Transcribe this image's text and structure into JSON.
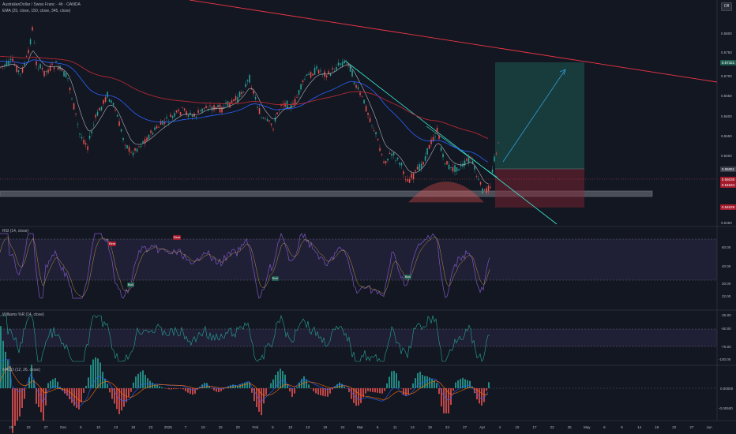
{
  "header": {
    "symbol_line": "AustralianDollar / Swiss Franc · 4h · OANDA",
    "indicator_line": "EMA (25, close, 150, close, 345, close)"
  },
  "panes": {
    "rsi_legend": "RSI (14, close)",
    "wr_legend": "Williams %R (14, close)",
    "macd_legend": "MACD (12, 26, close)"
  },
  "badge_label": "Off",
  "price_axis": {
    "ticks": [
      "0.5800",
      "0.5750",
      "0.5700",
      "0.5650",
      "0.5600",
      "0.5550",
      "0.5500",
      "0.5450"
    ],
    "labels": [
      {
        "text": "0.57421",
        "bg": "#1f5c4f"
      },
      {
        "text": "0.55061",
        "bg": "#3a3e4a"
      },
      {
        "text": "0.55035",
        "bg": "#a41b2c"
      },
      {
        "text": "0.54634",
        "bg": "#a41b2c"
      },
      {
        "text": "0.54029",
        "bg": "#a41b2c"
      }
    ]
  },
  "rsi_axis": [
    "60.00",
    "40.00",
    "30.00",
    "22.00"
  ],
  "wr_axis": [
    "-25.00",
    "-50.00",
    "-75.00",
    "-100.00"
  ],
  "macd_axis": [
    "0.00000",
    "-0.00500"
  ],
  "signals": [
    "Bear",
    "Bull",
    "Bear",
    "Bull",
    "Bull"
  ],
  "time_axis": [
    "19",
    "22",
    "27",
    "Dec",
    "5",
    "10",
    "13",
    "18",
    "23",
    "2025",
    "7",
    "10",
    "15",
    "20",
    "Feb",
    "5",
    "10",
    "13",
    "19",
    "24",
    "Mar",
    "6",
    "11",
    "14",
    "19",
    "24",
    "27",
    "Apr",
    "4",
    "10",
    "17",
    "22",
    "25",
    "May",
    "6",
    "9",
    "14",
    "19",
    "22",
    "27",
    "Jun"
  ],
  "colors": {
    "up": "#26a69a",
    "down": "#ef5350",
    "ema_fast": "#b2b5be",
    "ema_mid": "#2962ff",
    "ema_slow": "#b22833",
    "trend_red": "#f23645",
    "trend_cyan": "#3ae6ce",
    "rsi": "#7e57c2"
  },
  "chart_data": [
    {
      "type": "candlestick",
      "name": "AUDCHF 4h",
      "x_range": [
        "2024-11-19",
        "2025-06-01"
      ],
      "y_range": [
        0.545,
        0.582
      ],
      "key_levels": {
        "support_zone": [
          0.5465,
          0.5475
        ],
        "target": 0.5742,
        "entry": 0.5506,
        "stop": 0.5463
      },
      "emas": [
        25,
        150,
        345
      ],
      "trendlines": [
        "descending resistance",
        "descending channel",
        "rounded bottom"
      ]
    },
    {
      "type": "line",
      "name": "RSI (14, close)",
      "ylim": [
        22,
        65
      ],
      "levels": [
        30,
        70
      ]
    },
    {
      "type": "line",
      "name": "Williams %R (14, close)",
      "ylim": [
        -100,
        0
      ],
      "levels": [
        -20,
        -80
      ]
    },
    {
      "type": "bar",
      "name": "MACD (12, 26, close)",
      "ylim": [
        -0.007,
        0.002
      ]
    }
  ]
}
